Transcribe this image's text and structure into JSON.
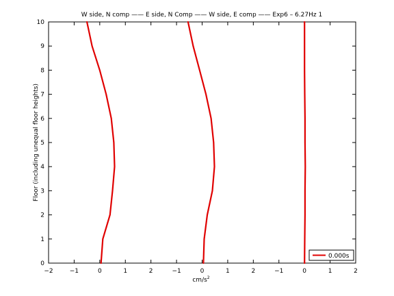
{
  "chart_data": {
    "type": "line",
    "title": "W side, N comp —— E side, N Comp —— W side, E comp —— Exp6 – 6.27Hz 1",
    "xlabel": "cm/s",
    "xlabel_superscript": "2",
    "ylabel": "Floor (including unequal floor heights)",
    "ylim": [
      0,
      10
    ],
    "yticks": [
      "0",
      "1",
      "2",
      "3",
      "4",
      "5",
      "6",
      "7",
      "8",
      "9",
      "10"
    ],
    "x_tick_labels": [
      "−2",
      "−1",
      "0",
      "1",
      "2",
      "−1",
      "0",
      "1",
      "2",
      "−1",
      "0",
      "1",
      "2"
    ],
    "grid": false,
    "legend": {
      "position": "bottom-right",
      "entries": [
        "0.000s"
      ]
    },
    "line_color": "#e00000",
    "panels": [
      {
        "name": "W side, N comp",
        "floor": [
          0,
          1,
          2,
          3,
          4,
          5,
          6,
          7,
          8,
          9,
          10
        ],
        "accel": [
          0.05,
          0.12,
          0.4,
          0.5,
          0.58,
          0.55,
          0.45,
          0.25,
          0.0,
          -0.3,
          -0.5
        ]
      },
      {
        "name": "E side, N Comp",
        "floor": [
          0,
          1,
          2,
          3,
          4,
          5,
          6,
          7,
          8,
          9,
          10
        ],
        "accel": [
          0.05,
          0.08,
          0.2,
          0.4,
          0.48,
          0.45,
          0.35,
          0.15,
          -0.1,
          -0.35,
          -0.55
        ]
      },
      {
        "name": "W side, E comp",
        "floor": [
          0,
          1,
          2,
          3,
          4,
          5,
          6,
          7,
          8,
          9,
          10
        ],
        "accel": [
          0.0,
          0.01,
          0.02,
          0.02,
          0.03,
          0.02,
          0.02,
          0.01,
          0.0,
          0.0,
          0.0
        ]
      }
    ]
  }
}
